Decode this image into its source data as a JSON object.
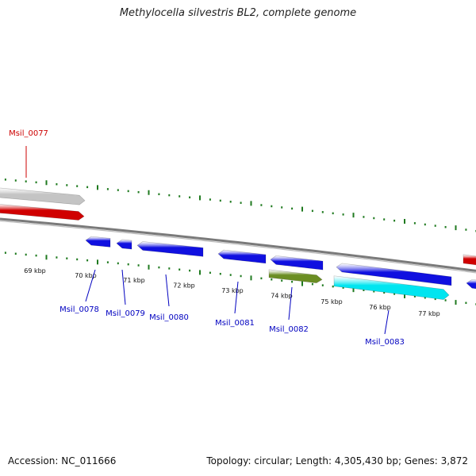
{
  "title": "Methylocella silvestris BL2, complete genome",
  "accession": "Accession: NC_011666",
  "summary": "Topology: circular; Length: 4,305,430 bp; Genes: 3,872",
  "colors": {
    "backbone": "#7a7a7a",
    "tick": "#1f7a1f",
    "cds_forward": "#d00000",
    "cds_reverse": "#1010e0",
    "rna_gray": "#c4c4c4",
    "olive": "#6b8e23",
    "cyan": "#00e5f0",
    "label_red": "#cc0000",
    "label_blue": "#0000c0"
  },
  "kbp_labels": [
    "69 kbp",
    "70 kbp",
    "71 kbp",
    "72 kbp",
    "73 kbp",
    "74 kbp",
    "75 kbp",
    "76 kbp",
    "77 kbp"
  ],
  "genes": [
    {
      "name": "Msil_0077",
      "color": "label_red"
    },
    {
      "name": "Msil_0078",
      "color": "label_blue"
    },
    {
      "name": "Msil_0079",
      "color": "label_blue"
    },
    {
      "name": "Msil_0080",
      "color": "label_blue"
    },
    {
      "name": "Msil_0081",
      "color": "label_blue"
    },
    {
      "name": "Msil_0082",
      "color": "label_blue"
    },
    {
      "name": "Msil_0083",
      "color": "label_blue"
    }
  ]
}
